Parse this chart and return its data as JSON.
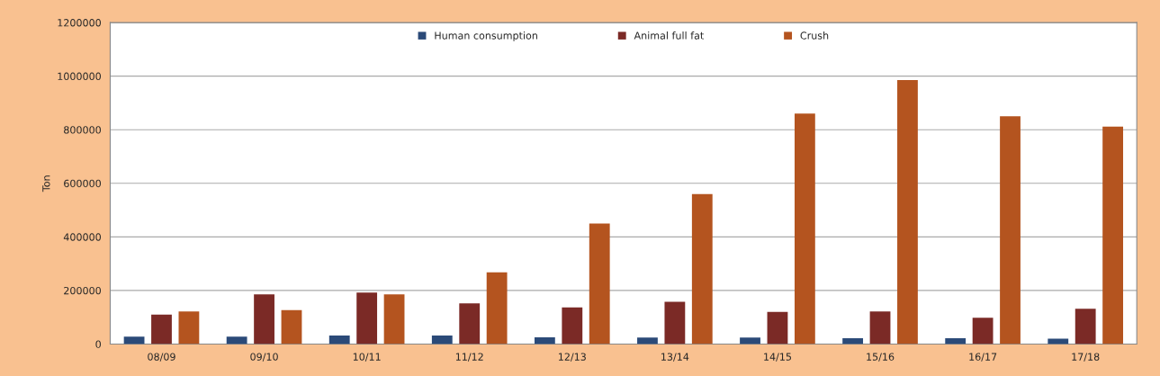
{
  "chart_data": {
    "type": "bar",
    "ylabel": "Ton",
    "categories": [
      "08/09",
      "09/10",
      "10/11",
      "11/12",
      "12/13",
      "13/14",
      "14/15",
      "15/16",
      "16/17",
      "17/18"
    ],
    "series": [
      {
        "name": "Human consumption",
        "color": "#2b4a78",
        "values": [
          28000,
          28000,
          32000,
          32000,
          25000,
          24000,
          24000,
          22000,
          22000,
          20000
        ]
      },
      {
        "name": "Animal full fat",
        "color": "#7b2a26",
        "values": [
          110000,
          185000,
          192000,
          152000,
          137000,
          158000,
          120000,
          122000,
          98000,
          132000
        ]
      },
      {
        "name": "Crush",
        "color": "#b4541f",
        "values": [
          122000,
          127000,
          185000,
          268000,
          450000,
          560000,
          860000,
          985000,
          850000,
          812000
        ]
      }
    ],
    "ylim": [
      0,
      1200000
    ],
    "yticks": [
      0,
      200000,
      400000,
      600000,
      800000,
      1000000,
      1200000
    ],
    "grid": "y",
    "legend": "top"
  }
}
